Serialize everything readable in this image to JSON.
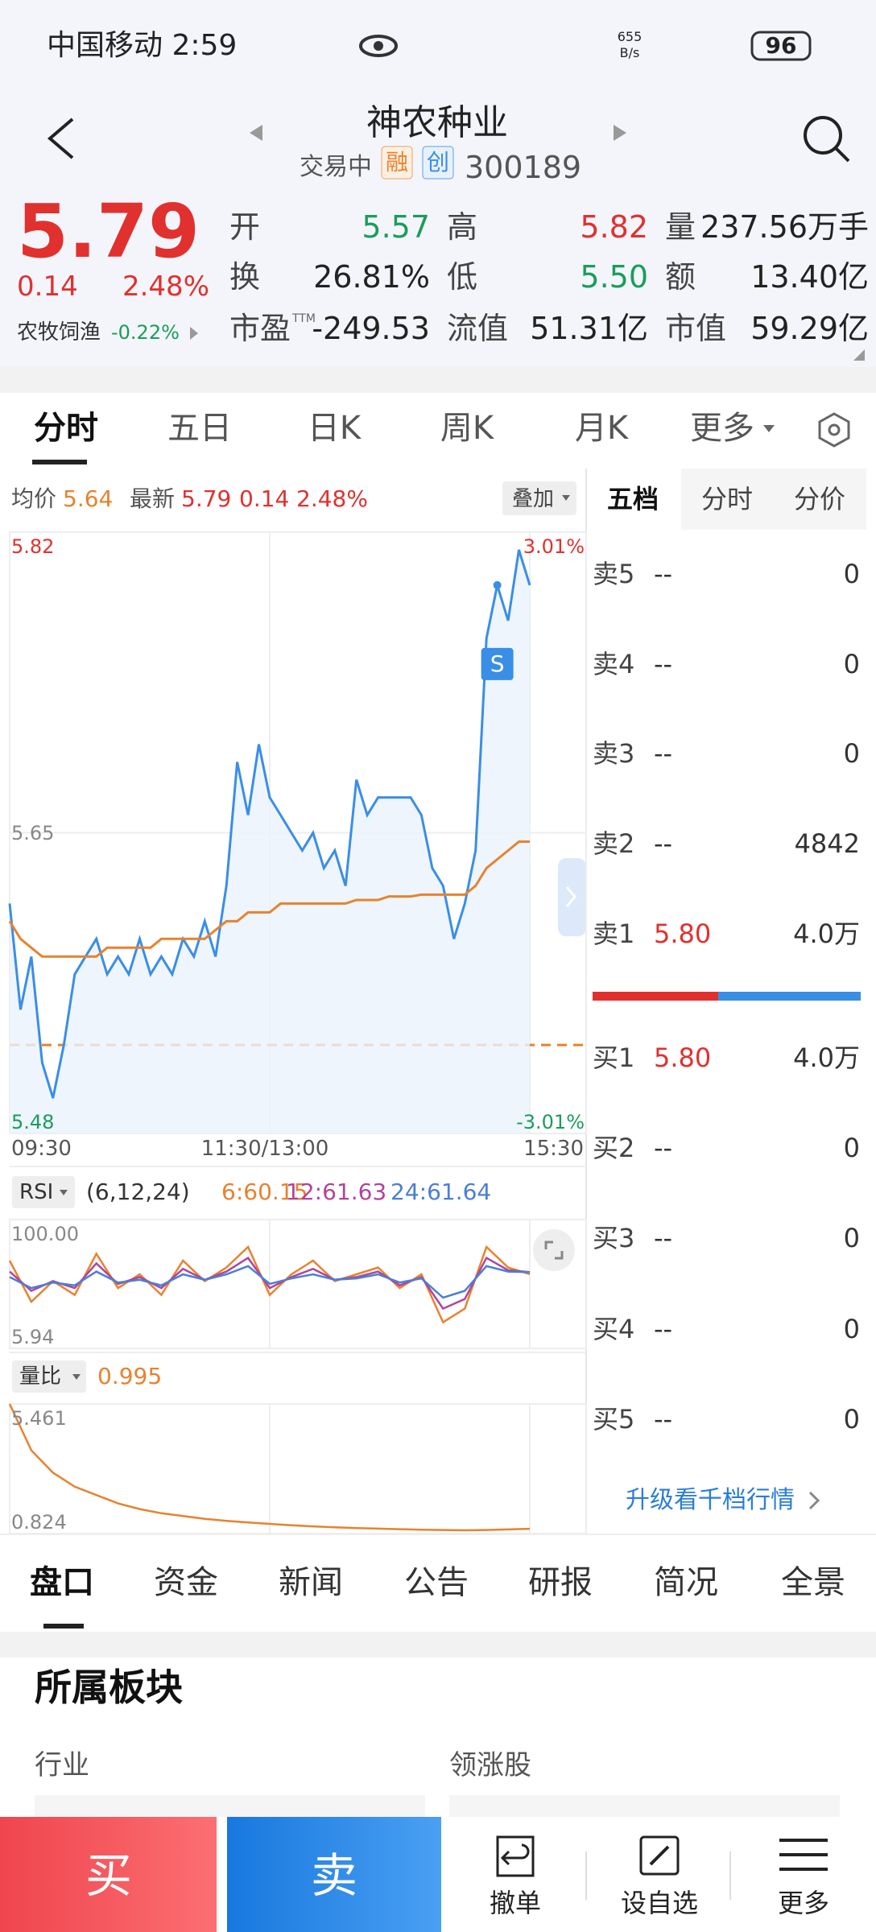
{
  "status_bar": {
    "carrier_time": "中国移动 2:59",
    "net_speed": "655",
    "net_unit": "B/s",
    "battery": "96"
  },
  "header": {
    "title": "神农种业",
    "status": "交易中",
    "badges": [
      "融",
      "创"
    ],
    "code": "300189"
  },
  "quote": {
    "price": "5.79",
    "change": "0.14",
    "change_pct": "2.48%",
    "sector": "农牧饲渔",
    "sector_change": "-0.22%",
    "stats": [
      {
        "label": "开",
        "value": "5.57",
        "color": "#1a9d5a"
      },
      {
        "label": "高",
        "value": "5.82",
        "color": "#e0312f"
      },
      {
        "label": "量",
        "value": "237.56万手",
        "color": "#222"
      },
      {
        "label": "换",
        "value": "26.81%",
        "color": "#222"
      },
      {
        "label": "低",
        "value": "5.50",
        "color": "#1a9d5a"
      },
      {
        "label": "额",
        "value": "13.40亿",
        "color": "#222"
      },
      {
        "label": "市盈",
        "sup": "TTM",
        "value": "-249.53",
        "color": "#222"
      },
      {
        "label": "流值",
        "value": "51.31亿",
        "color": "#222"
      },
      {
        "label": "市值",
        "value": "59.29亿",
        "color": "#222"
      }
    ]
  },
  "chart_tabs": [
    "分时",
    "五日",
    "日K",
    "周K",
    "月K",
    "更多"
  ],
  "chart_info": {
    "avg_label": "均价",
    "avg_value": "5.64",
    "last_label": "最新",
    "last_value": "5.79",
    "change": "0.14",
    "change_pct": "2.48%",
    "overlay": "叠加"
  },
  "chart_data": [
    {
      "type": "line",
      "marker": "S",
      "grid": true,
      "x_labels": [
        "09:30",
        "11:30/13:00",
        "15:30"
      ],
      "ylim": [
        5.48,
        5.82
      ],
      "yticks": [
        5.48,
        5.65,
        5.82
      ],
      "y2lim": [
        -3.01,
        3.01
      ],
      "y2ticks": [
        {
          "value": -3.01,
          "label": "-3.01%"
        },
        {
          "value": 3.01,
          "label": "3.01%"
        }
      ],
      "reference_line": 5.53,
      "series": [
        {
          "color": "#3a8ee6",
          "values": [
            5.61,
            5.55,
            5.58,
            5.52,
            5.5,
            5.53,
            5.57,
            5.58,
            5.59,
            5.57,
            5.58,
            5.57,
            5.59,
            5.57,
            5.58,
            5.57,
            5.59,
            5.58,
            5.6,
            5.58,
            5.62,
            5.69,
            5.66,
            5.7,
            5.67,
            5.66,
            5.65,
            5.64,
            5.65,
            5.63,
            5.64,
            5.62,
            5.68,
            5.66,
            5.67,
            5.67,
            5.67,
            5.67,
            5.66,
            5.63,
            5.62,
            5.59,
            5.61,
            5.64,
            5.76,
            5.79,
            5.77,
            5.81,
            5.79
          ]
        },
        {
          "color": "#e8822e",
          "values": [
            5.6,
            5.59,
            5.585,
            5.58,
            5.58,
            5.58,
            5.58,
            5.58,
            5.58,
            5.585,
            5.585,
            5.585,
            5.585,
            5.585,
            5.59,
            5.59,
            5.59,
            5.59,
            5.59,
            5.595,
            5.6,
            5.6,
            5.605,
            5.605,
            5.605,
            5.61,
            5.61,
            5.61,
            5.61,
            5.61,
            5.61,
            5.61,
            5.612,
            5.612,
            5.612,
            5.614,
            5.614,
            5.614,
            5.615,
            5.615,
            5.615,
            5.615,
            5.615,
            5.62,
            5.63,
            5.635,
            5.64,
            5.645,
            5.645
          ]
        }
      ]
    },
    {
      "type": "line",
      "title": "RSI",
      "params": "(6,12,24)",
      "ylim": [
        5.94,
        100
      ],
      "yticks": [
        5.94,
        {
          "value": 100,
          "label": "100.00"
        }
      ],
      "series": [
        {
          "legend": "6:60.15",
          "color": "#e8822e",
          "values": [
            70,
            40,
            55,
            45,
            75,
            50,
            60,
            45,
            70,
            55,
            65,
            80,
            45,
            60,
            70,
            55,
            60,
            65,
            50,
            60,
            25,
            35,
            80,
            65,
            60.15
          ]
        },
        {
          "legend": "12:61.63",
          "color": "#b0459c",
          "values": [
            62,
            48,
            55,
            50,
            68,
            53,
            58,
            50,
            64,
            56,
            62,
            72,
            50,
            58,
            64,
            56,
            58,
            62,
            52,
            58,
            35,
            42,
            72,
            63,
            61.63
          ]
        },
        {
          "legend": "24:61.64",
          "color": "#4a7fd6",
          "values": [
            58,
            50,
            54,
            52,
            62,
            54,
            56,
            52,
            60,
            56,
            60,
            66,
            53,
            57,
            60,
            56,
            57,
            60,
            54,
            57,
            43,
            48,
            66,
            62,
            61.64
          ]
        }
      ]
    },
    {
      "type": "line",
      "title": "量比",
      "current": "0.995",
      "ylim": [
        0.824,
        5.461
      ],
      "yticks": [
        0.824,
        5.461
      ],
      "series": [
        {
          "color": "#e8822e",
          "values": [
            5.461,
            3.8,
            3.0,
            2.5,
            2.2,
            1.9,
            1.7,
            1.55,
            1.45,
            1.35,
            1.28,
            1.22,
            1.17,
            1.12,
            1.08,
            1.05,
            1.02,
            1.0,
            0.98,
            0.96,
            0.95,
            0.94,
            0.95,
            0.97,
            0.995
          ]
        }
      ]
    }
  ],
  "order_book": {
    "tabs": [
      "五档",
      "分时",
      "分价"
    ],
    "asks": [
      {
        "label": "卖5",
        "price": "--",
        "volume": "0"
      },
      {
        "label": "卖4",
        "price": "--",
        "volume": "0"
      },
      {
        "label": "卖3",
        "price": "--",
        "volume": "0"
      },
      {
        "label": "卖2",
        "price": "--",
        "volume": "4842"
      },
      {
        "label": "卖1",
        "price": "5.80",
        "volume": "4.0万"
      }
    ],
    "bids": [
      {
        "label": "买1",
        "price": "5.80",
        "volume": "4.0万"
      },
      {
        "label": "买2",
        "price": "--",
        "volume": "0"
      },
      {
        "label": "买3",
        "price": "--",
        "volume": "0"
      },
      {
        "label": "买4",
        "price": "--",
        "volume": "0"
      },
      {
        "label": "买5",
        "price": "--",
        "volume": "0"
      }
    ],
    "upgrade": "升级看千档行情"
  },
  "detail_tabs": [
    "盘口",
    "资金",
    "新闻",
    "公告",
    "研报",
    "简况",
    "全景"
  ],
  "section": {
    "title": "所属板块",
    "columns": [
      "行业",
      "领涨股"
    ]
  },
  "actions": {
    "buy": "买",
    "sell": "卖",
    "items": [
      "撤单",
      "设自选",
      "更多"
    ]
  }
}
